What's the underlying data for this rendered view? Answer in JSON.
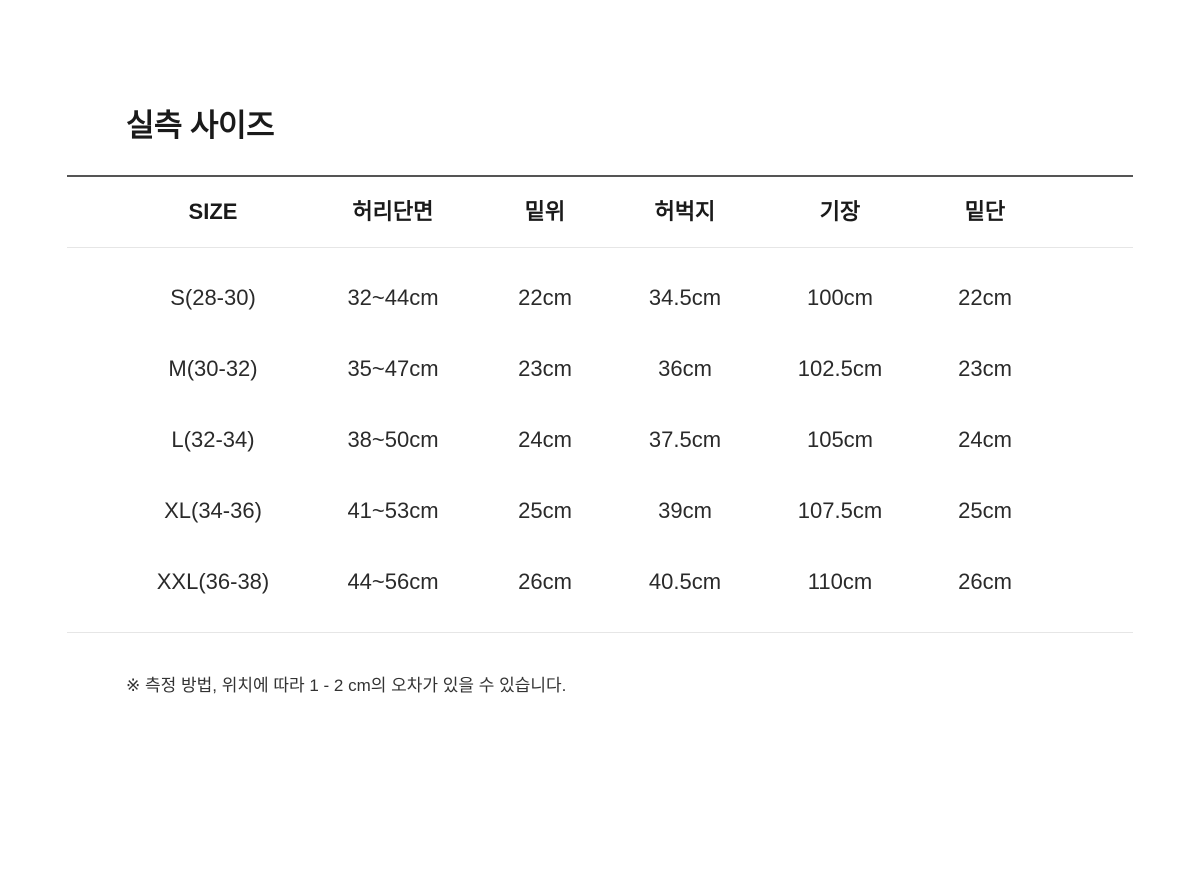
{
  "title": "실측 사이즈",
  "table": {
    "headers": [
      "SIZE",
      "허리단면",
      "밑위",
      "허벅지",
      "기장",
      "밑단"
    ],
    "rows": [
      [
        "S(28-30)",
        "32~44cm",
        "22cm",
        "34.5cm",
        "100cm",
        "22cm"
      ],
      [
        "M(30-32)",
        "35~47cm",
        "23cm",
        "36cm",
        "102.5cm",
        "23cm"
      ],
      [
        "L(32-34)",
        "38~50cm",
        "24cm",
        "37.5cm",
        "105cm",
        "24cm"
      ],
      [
        "XL(34-36)",
        "41~53cm",
        "25cm",
        "39cm",
        "107.5cm",
        "25cm"
      ],
      [
        "XXL(36-38)",
        "44~56cm",
        "26cm",
        "40.5cm",
        "110cm",
        "26cm"
      ]
    ]
  },
  "note": "※ 측정 방법, 위치에 따라 1 - 2 cm의 오차가 있을 수 있습니다."
}
